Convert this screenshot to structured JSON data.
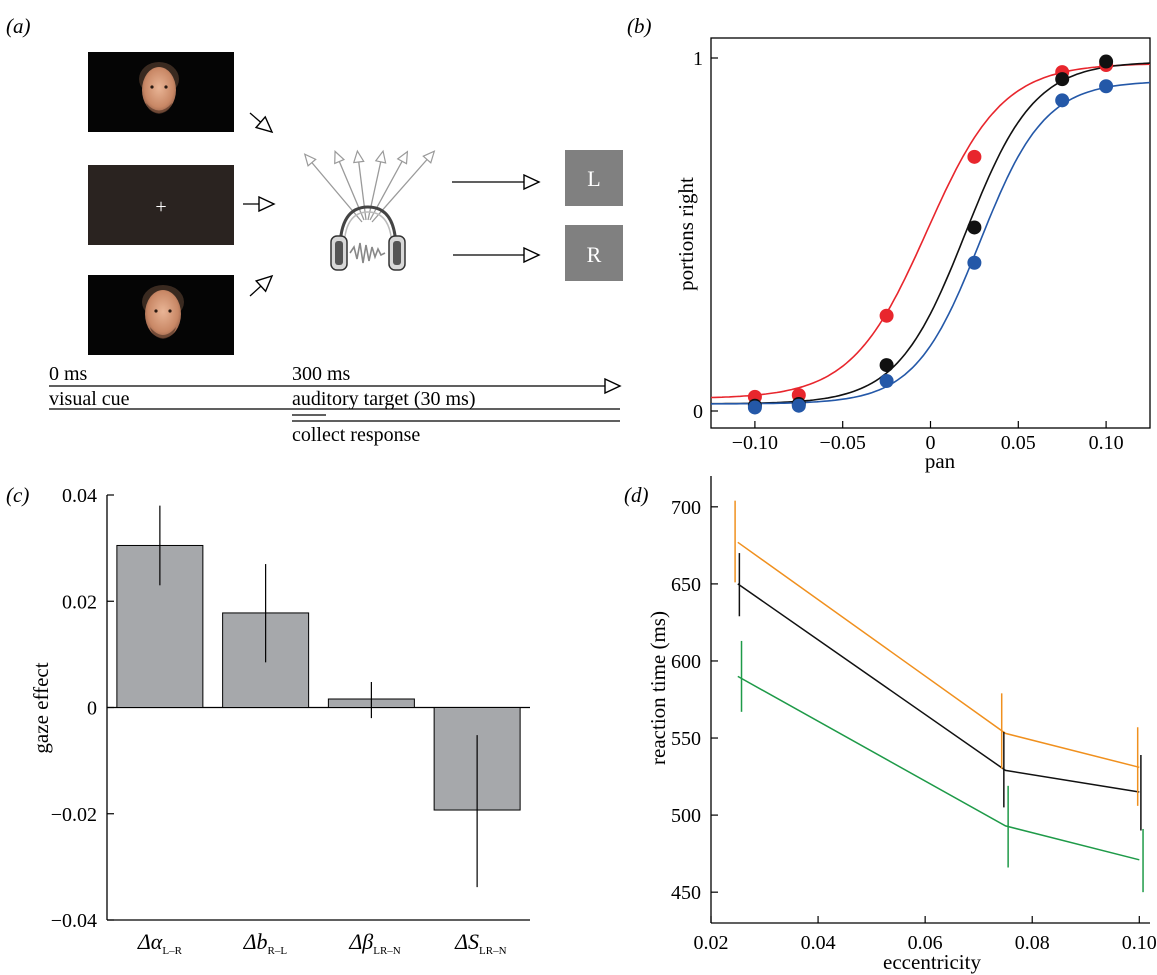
{
  "panels": {
    "a": {
      "label": "(a)",
      "fixation": "+",
      "response_keys": [
        "L",
        "R"
      ],
      "timeline": {
        "t0": "0 ms",
        "t1": "300 ms",
        "visual_cue": "visual cue",
        "auditory_target": "auditory target (30 ms)",
        "collect_response": "collect response"
      }
    },
    "b": {
      "label": "(b)"
    },
    "c": {
      "label": "(c)"
    },
    "d": {
      "label": "(d)"
    }
  },
  "colors": {
    "red": "#e8262d",
    "black": "#111111",
    "blue": "#2458a8",
    "orange": "#f0901e",
    "green": "#1e9a48",
    "bar": "#a6a8ab"
  },
  "chart_data": [
    {
      "panel": "b",
      "type": "scatter",
      "xlabel": "pan",
      "ylabel": "portions right",
      "xlim": [
        -0.125,
        0.125
      ],
      "ylim": [
        0,
        1
      ],
      "xticks": [
        "−0.10",
        "−0.05",
        "0",
        "0.05",
        "0.10"
      ],
      "xtick_values": [
        -0.1,
        -0.05,
        0,
        0.05,
        0.1
      ],
      "yticks": [
        "0",
        "1"
      ],
      "ytick_values": [
        0,
        1
      ],
      "x": [
        -0.1,
        -0.075,
        -0.025,
        0.025,
        0.075,
        0.1
      ],
      "series": [
        {
          "color": "red",
          "values": [
            0.04,
            0.045,
            0.27,
            0.72,
            0.96,
            0.98
          ],
          "fit": {
            "mu": -0.002,
            "s": 0.0215,
            "lo": 0.035,
            "hi": 0.985
          }
        },
        {
          "color": "black",
          "values": [
            0.015,
            0.02,
            0.13,
            0.52,
            0.94,
            0.99
          ],
          "fit": {
            "mu": 0.02,
            "s": 0.0195,
            "lo": 0.02,
            "hi": 0.99
          }
        },
        {
          "color": "blue",
          "values": [
            0.01,
            0.015,
            0.085,
            0.42,
            0.88,
            0.92
          ],
          "fit": {
            "mu": 0.028,
            "s": 0.0185,
            "lo": 0.02,
            "hi": 0.935
          }
        }
      ]
    },
    {
      "panel": "c",
      "type": "bar",
      "ylabel": "gaze effect",
      "ylim": [
        -0.04,
        0.04
      ],
      "yticks": [
        "0.04",
        "0.02",
        "0",
        "−0.02",
        "−0.04"
      ],
      "ytick_values": [
        0.04,
        0.02,
        0,
        -0.02,
        -0.04
      ],
      "categories": [
        {
          "main": "Δα",
          "sub": "L–R",
          "italic": true
        },
        {
          "main": "Δb",
          "sub": "R–L",
          "italic": true
        },
        {
          "main": "Δβ",
          "sub": "LR–N",
          "italic": true
        },
        {
          "main": "ΔS",
          "sub": "LR–N",
          "italic": true
        }
      ],
      "values": [
        0.0305,
        0.0178,
        0.0016,
        -0.0193
      ],
      "errors": [
        [
          0.023,
          0.038
        ],
        [
          0.0085,
          0.027
        ],
        [
          -0.002,
          0.0048
        ],
        [
          -0.0338,
          -0.0052
        ]
      ]
    },
    {
      "panel": "d",
      "type": "line",
      "xlabel": "eccentricity",
      "ylabel": "reaction time (ms)",
      "xlim": [
        0.02,
        0.102
      ],
      "ylim": [
        430,
        720
      ],
      "xticks": [
        "0.02",
        "0.04",
        "0.06",
        "0.08",
        "0.10"
      ],
      "xtick_values": [
        0.02,
        0.04,
        0.06,
        0.08,
        0.1
      ],
      "yticks": [
        "700",
        "650",
        "600",
        "550",
        "500",
        "450"
      ],
      "ytick_values": [
        700,
        650,
        600,
        550,
        500,
        450
      ],
      "series": [
        {
          "color": "orange",
          "x": [
            0.025,
            0.075,
            0.1
          ],
          "values": [
            677,
            553,
            531
          ],
          "err_lo": [
            651,
            530,
            506
          ],
          "err_hi": [
            704,
            579,
            557
          ],
          "err_x": [
            0.0245,
            0.0743,
            0.0997
          ]
        },
        {
          "color": "black",
          "x": [
            0.025,
            0.075,
            0.1
          ],
          "values": [
            650,
            529,
            515
          ],
          "err_lo": [
            629,
            505,
            490
          ],
          "err_hi": [
            670,
            554,
            539
          ],
          "err_x": [
            0.0253,
            0.0747,
            0.1003
          ]
        },
        {
          "color": "green",
          "x": [
            0.025,
            0.075,
            0.1
          ],
          "values": [
            590,
            493,
            471
          ],
          "err_lo": [
            567,
            466,
            450
          ],
          "err_hi": [
            613,
            519,
            491
          ],
          "err_x": [
            0.0257,
            0.0755,
            0.1007
          ]
        }
      ]
    }
  ]
}
